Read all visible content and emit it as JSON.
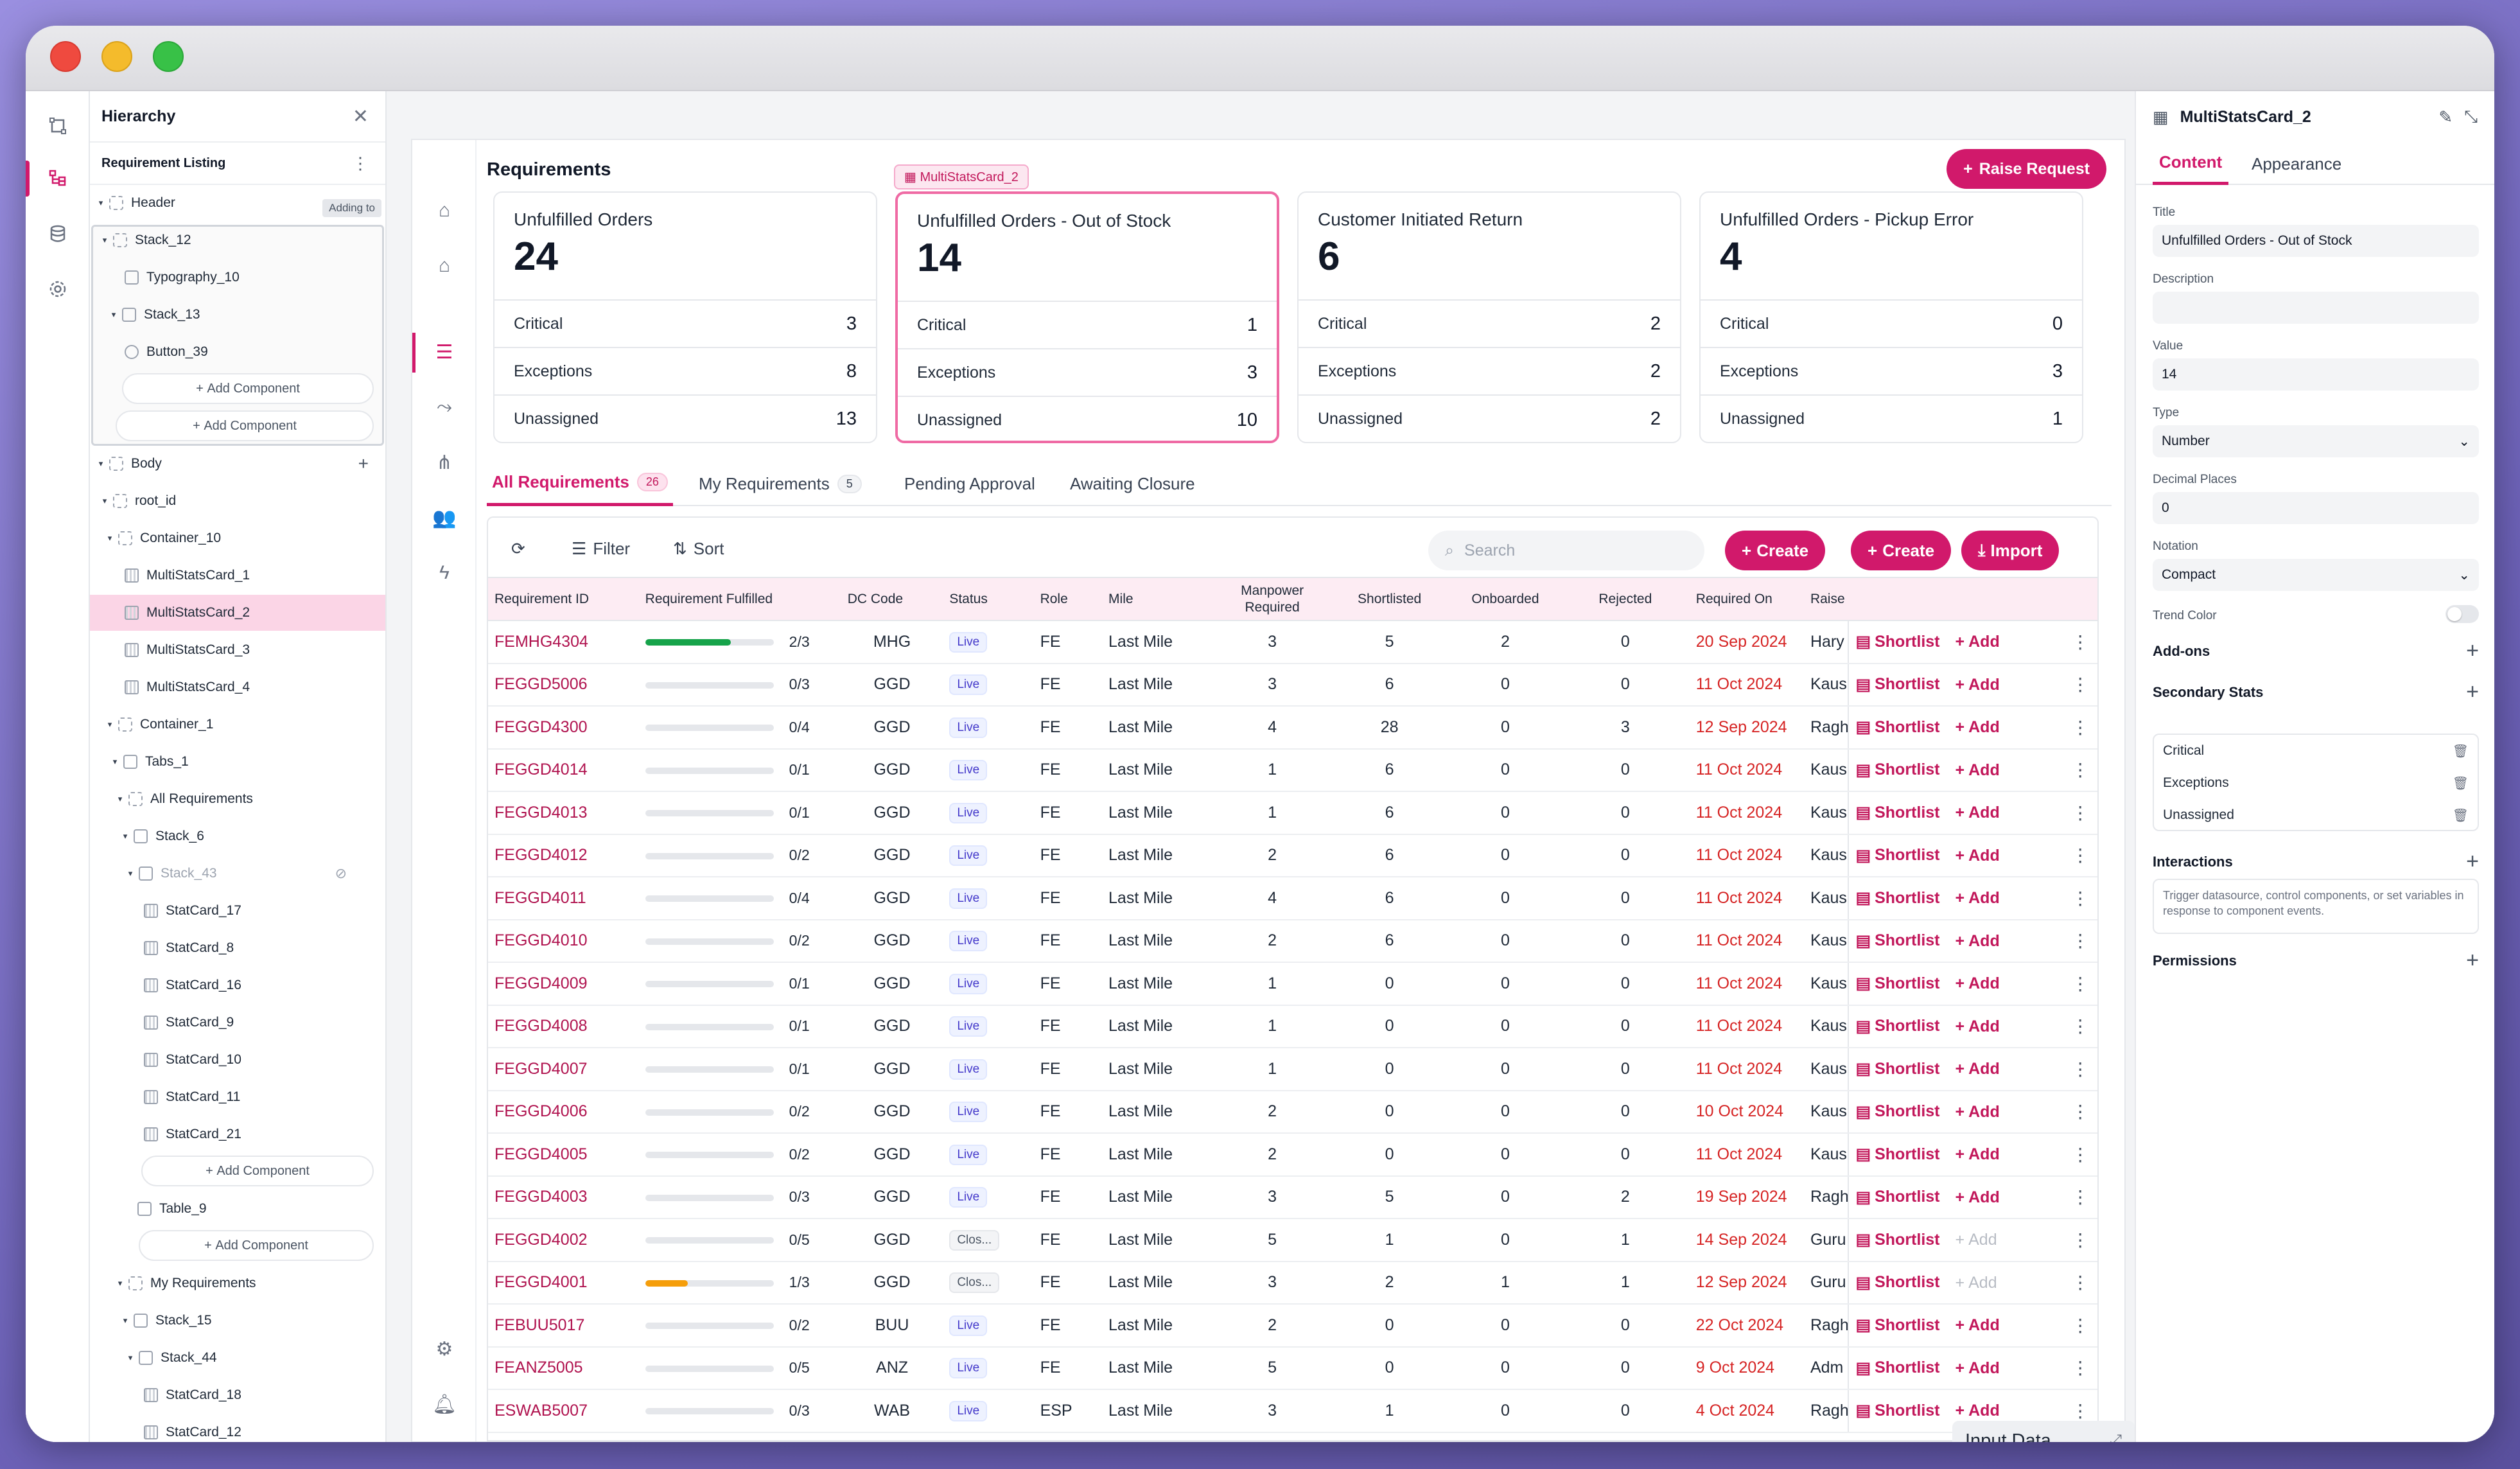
{
  "hierarchy": {
    "title": "Hierarchy",
    "subtitle": "Requirement Listing",
    "adding_to": "Adding to",
    "add_component": "Add Component",
    "nodes": {
      "header": "Header",
      "stack_12": "Stack_12",
      "typography_10": "Typography_10",
      "stack_13": "Stack_13",
      "button_39": "Button_39",
      "body": "Body",
      "root_id": "root_id",
      "container_10": "Container_10",
      "msc1": "MultiStatsCard_1",
      "msc2": "MultiStatsCard_2",
      "msc3": "MultiStatsCard_3",
      "msc4": "MultiStatsCard_4",
      "container_1": "Container_1",
      "tabs_1": "Tabs_1",
      "all_req": "All Requirements",
      "stack_6": "Stack_6",
      "stack_43": "Stack_43",
      "sc17": "StatCard_17",
      "sc8": "StatCard_8",
      "sc16": "StatCard_16",
      "sc9": "StatCard_9",
      "sc10": "StatCard_10",
      "sc11": "StatCard_11",
      "sc21": "StatCard_21",
      "table_9": "Table_9",
      "my_req": "My Requirements",
      "stack_15": "Stack_15",
      "stack_44": "Stack_44",
      "sc18": "StatCard_18",
      "sc12": "StatCard_12"
    }
  },
  "main": {
    "title": "Requirements",
    "selected_tag": "MultiStatsCard_2",
    "raise_request": "Raise Request",
    "cards": [
      {
        "title": "Unfulfilled Orders",
        "value": "24",
        "rows": [
          {
            "label": "Critical",
            "value": "3"
          },
          {
            "label": "Exceptions",
            "value": "8"
          },
          {
            "label": "Unassigned",
            "value": "13"
          }
        ]
      },
      {
        "title": "Unfulfilled Orders - Out of Stock",
        "value": "14",
        "rows": [
          {
            "label": "Critical",
            "value": "1"
          },
          {
            "label": "Exceptions",
            "value": "3"
          },
          {
            "label": "Unassigned",
            "value": "10"
          }
        ]
      },
      {
        "title": "Customer Initiated Return",
        "value": "6",
        "rows": [
          {
            "label": "Critical",
            "value": "2"
          },
          {
            "label": "Exceptions",
            "value": "2"
          },
          {
            "label": "Unassigned",
            "value": "2"
          }
        ]
      },
      {
        "title": "Unfulfilled Orders - Pickup Error",
        "value": "4",
        "rows": [
          {
            "label": "Critical",
            "value": "0"
          },
          {
            "label": "Exceptions",
            "value": "3"
          },
          {
            "label": "Unassigned",
            "value": "1"
          }
        ]
      }
    ],
    "tabs": [
      {
        "label": "All Requirements",
        "count": "26"
      },
      {
        "label": "My Requirements",
        "count": "5"
      },
      {
        "label": "Pending Approval"
      },
      {
        "label": "Awaiting Closure"
      }
    ],
    "toolbar": {
      "filter": "Filter",
      "sort": "Sort",
      "search_placeholder": "Search",
      "create": "Create",
      "import": "Import"
    },
    "columns": [
      "Requirement ID",
      "Requirement Fulfilled",
      "DC Code",
      "Status",
      "Role",
      "Mile",
      "Manpower Required",
      "Shortlisted",
      "Onboarded",
      "Rejected",
      "Required On",
      "Raise"
    ],
    "actions": {
      "shortlist": "Shortlist",
      "add": "Add"
    },
    "rows": [
      {
        "id": "FEMHG4304",
        "fill": 0.667,
        "frac": "2/3",
        "dc": "MHG",
        "status": "Live",
        "role": "FE",
        "mile": "Last Mile",
        "mp": "3",
        "sl": "5",
        "on": "2",
        "rej": "0",
        "date": "20 Sep 2024",
        "raise": "Hary",
        "add_enabled": true
      },
      {
        "id": "FEGGD5006",
        "fill": 0,
        "frac": "0/3",
        "dc": "GGD",
        "status": "Live",
        "role": "FE",
        "mile": "Last Mile",
        "mp": "3",
        "sl": "6",
        "on": "0",
        "rej": "0",
        "date": "11 Oct 2024",
        "raise": "Kaus",
        "add_enabled": true
      },
      {
        "id": "FEGGD4300",
        "fill": 0,
        "frac": "0/4",
        "dc": "GGD",
        "status": "Live",
        "role": "FE",
        "mile": "Last Mile",
        "mp": "4",
        "sl": "28",
        "on": "0",
        "rej": "3",
        "date": "12 Sep 2024",
        "raise": "Ragh",
        "add_enabled": true
      },
      {
        "id": "FEGGD4014",
        "fill": 0,
        "frac": "0/1",
        "dc": "GGD",
        "status": "Live",
        "role": "FE",
        "mile": "Last Mile",
        "mp": "1",
        "sl": "6",
        "on": "0",
        "rej": "0",
        "date": "11 Oct 2024",
        "raise": "Kaus",
        "add_enabled": true
      },
      {
        "id": "FEGGD4013",
        "fill": 0,
        "frac": "0/1",
        "dc": "GGD",
        "status": "Live",
        "role": "FE",
        "mile": "Last Mile",
        "mp": "1",
        "sl": "6",
        "on": "0",
        "rej": "0",
        "date": "11 Oct 2024",
        "raise": "Kaus",
        "add_enabled": true
      },
      {
        "id": "FEGGD4012",
        "fill": 0,
        "frac": "0/2",
        "dc": "GGD",
        "status": "Live",
        "role": "FE",
        "mile": "Last Mile",
        "mp": "2",
        "sl": "6",
        "on": "0",
        "rej": "0",
        "date": "11 Oct 2024",
        "raise": "Kaus",
        "add_enabled": true
      },
      {
        "id": "FEGGD4011",
        "fill": 0,
        "frac": "0/4",
        "dc": "GGD",
        "status": "Live",
        "role": "FE",
        "mile": "Last Mile",
        "mp": "4",
        "sl": "6",
        "on": "0",
        "rej": "0",
        "date": "11 Oct 2024",
        "raise": "Kaus",
        "add_enabled": true
      },
      {
        "id": "FEGGD4010",
        "fill": 0,
        "frac": "0/2",
        "dc": "GGD",
        "status": "Live",
        "role": "FE",
        "mile": "Last Mile",
        "mp": "2",
        "sl": "6",
        "on": "0",
        "rej": "0",
        "date": "11 Oct 2024",
        "raise": "Kaus",
        "add_enabled": true
      },
      {
        "id": "FEGGD4009",
        "fill": 0,
        "frac": "0/1",
        "dc": "GGD",
        "status": "Live",
        "role": "FE",
        "mile": "Last Mile",
        "mp": "1",
        "sl": "0",
        "on": "0",
        "rej": "0",
        "date": "11 Oct 2024",
        "raise": "Kaus",
        "add_enabled": true
      },
      {
        "id": "FEGGD4008",
        "fill": 0,
        "frac": "0/1",
        "dc": "GGD",
        "status": "Live",
        "role": "FE",
        "mile": "Last Mile",
        "mp": "1",
        "sl": "0",
        "on": "0",
        "rej": "0",
        "date": "11 Oct 2024",
        "raise": "Kaus",
        "add_enabled": true
      },
      {
        "id": "FEGGD4007",
        "fill": 0,
        "frac": "0/1",
        "dc": "GGD",
        "status": "Live",
        "role": "FE",
        "mile": "Last Mile",
        "mp": "1",
        "sl": "0",
        "on": "0",
        "rej": "0",
        "date": "11 Oct 2024",
        "raise": "Kaus",
        "add_enabled": true
      },
      {
        "id": "FEGGD4006",
        "fill": 0,
        "frac": "0/2",
        "dc": "GGD",
        "status": "Live",
        "role": "FE",
        "mile": "Last Mile",
        "mp": "2",
        "sl": "0",
        "on": "0",
        "rej": "0",
        "date": "10 Oct 2024",
        "raise": "Kaus",
        "add_enabled": true
      },
      {
        "id": "FEGGD4005",
        "fill": 0,
        "frac": "0/2",
        "dc": "GGD",
        "status": "Live",
        "role": "FE",
        "mile": "Last Mile",
        "mp": "2",
        "sl": "0",
        "on": "0",
        "rej": "0",
        "date": "11 Oct 2024",
        "raise": "Kaus",
        "add_enabled": true
      },
      {
        "id": "FEGGD4003",
        "fill": 0,
        "frac": "0/3",
        "dc": "GGD",
        "status": "Live",
        "role": "FE",
        "mile": "Last Mile",
        "mp": "3",
        "sl": "5",
        "on": "0",
        "rej": "2",
        "date": "19 Sep 2024",
        "raise": "Ragh",
        "add_enabled": true
      },
      {
        "id": "FEGGD4002",
        "fill": 0,
        "frac": "0/5",
        "dc": "GGD",
        "status": "Clos...",
        "role": "FE",
        "mile": "Last Mile",
        "mp": "5",
        "sl": "1",
        "on": "0",
        "rej": "1",
        "date": "14 Sep 2024",
        "raise": "Guru",
        "add_enabled": false
      },
      {
        "id": "FEGGD4001",
        "fill": 0.333,
        "frac": "1/3",
        "dc": "GGD",
        "status": "Clos...",
        "role": "FE",
        "mile": "Last Mile",
        "mp": "3",
        "sl": "2",
        "on": "1",
        "rej": "1",
        "date": "12 Sep 2024",
        "raise": "Guru",
        "add_enabled": false
      },
      {
        "id": "FEBUU5017",
        "fill": 0,
        "frac": "0/2",
        "dc": "BUU",
        "status": "Live",
        "role": "FE",
        "mile": "Last Mile",
        "mp": "2",
        "sl": "0",
        "on": "0",
        "rej": "0",
        "date": "22 Oct 2024",
        "raise": "Ragh",
        "add_enabled": true
      },
      {
        "id": "FEANZ5005",
        "fill": 0,
        "frac": "0/5",
        "dc": "ANZ",
        "status": "Live",
        "role": "FE",
        "mile": "Last Mile",
        "mp": "5",
        "sl": "0",
        "on": "0",
        "rej": "0",
        "date": "9 Oct 2024",
        "raise": "Adm",
        "add_enabled": true
      },
      {
        "id": "ESWAB5007",
        "fill": 0,
        "frac": "0/3",
        "dc": "WAB",
        "status": "Live",
        "role": "ESP",
        "mile": "Last Mile",
        "mp": "3",
        "sl": "1",
        "on": "0",
        "rej": "0",
        "date": "4 Oct 2024",
        "raise": "Ragh",
        "add_enabled": true
      }
    ],
    "input_data": "Input Data"
  },
  "props": {
    "title": "MultiStatsCard_2",
    "tabs": [
      "Content",
      "Appearance"
    ],
    "title_label": "Title",
    "title_value": "Unfulfilled Orders - Out of Stock",
    "description_label": "Description",
    "description_value": "",
    "value_label": "Value",
    "value_value": "14",
    "type_label": "Type",
    "type_value": "Number",
    "decimal_label": "Decimal Places",
    "decimal_value": "0",
    "notation_label": "Notation",
    "notation_value": "Compact",
    "trend_label": "Trend Color",
    "addons": "Add-ons",
    "secondary": "Secondary Stats",
    "secondary_items": [
      "Critical",
      "Exceptions",
      "Unassigned"
    ],
    "interactions": "Interactions",
    "interactions_hint": "Trigger datasource, control components, or set variables in response to component events.",
    "permissions": "Permissions"
  },
  "colors": {
    "accent": "#d1196b",
    "progress_green": "#16a34a",
    "progress_orange": "#f59e0b",
    "date_red": "#d62424"
  }
}
